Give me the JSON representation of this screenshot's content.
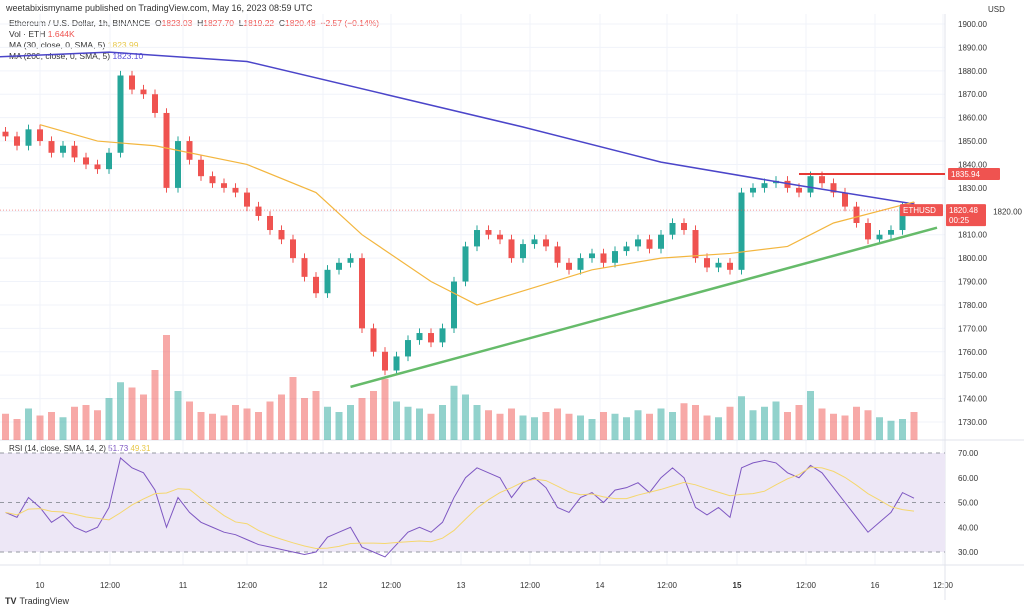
{
  "header": {
    "published": "weetabixismyname published on TradingView.com, May 16, 2023 08:59 UTC"
  },
  "legend": {
    "symbol": "Ethereum / U.S. Dollar, 1h, BINANCE",
    "o_label": "O",
    "o": "1823.03",
    "h_label": "H",
    "h": "1827.70",
    "l_label": "L",
    "l": "1819.22",
    "c_label": "C",
    "c": "1820.48",
    "change": "−2.57 (−0.14%)",
    "vol_label": "Vol · ETH",
    "vol": "1.644K",
    "ma30_label": "MA (30, close, 0, SMA, 5)",
    "ma30": "1823.99",
    "ma200_label": "MA (200, close, 0, SMA, 5)",
    "ma200": "1823.10"
  },
  "rsi_legend": {
    "label": "RSI (14, close, SMA, 14, 2)",
    "rsi": "51.73",
    "rsi_ma": "49.31"
  },
  "price_axis": {
    "currency": "USD",
    "ticks": [
      1900,
      1890,
      1880,
      1870,
      1860,
      1850,
      1840,
      1830,
      1820,
      1810,
      1800,
      1790,
      1780,
      1770,
      1760,
      1750,
      1740,
      1730
    ],
    "symbol_tag": "ETHUSD",
    "last_price": "1820.48",
    "countdown": "00:25",
    "level_tag": "1835.94"
  },
  "rsi_axis": {
    "ticks": [
      70,
      60,
      50,
      40,
      30
    ]
  },
  "time_axis": [
    "10",
    "12:00",
    "11",
    "12:00",
    "12",
    "12:00",
    "13",
    "12:00",
    "14",
    "12:00",
    "15",
    "12:00",
    "16",
    "12:00"
  ],
  "brand": "TradingView",
  "colors": {
    "up": "#26a69a",
    "down": "#ef5350",
    "ma30": "#f3b63f",
    "ma200": "#4b45c9",
    "trendline": "#66bb6a",
    "level": "#e53935",
    "rsi": "#7e57c2",
    "rsi_ma": "#f5d76e",
    "rsi_band": "#ede7f6"
  },
  "chart_data": {
    "type": "candlestick",
    "candles": {
      "start": "2023-05-09 18:00",
      "interval": "2h",
      "close": [
        1852,
        1848,
        1855,
        1850,
        1845,
        1848,
        1843,
        1840,
        1838,
        1845,
        1878,
        1872,
        1870,
        1862,
        1830,
        1850,
        1842,
        1835,
        1832,
        1830,
        1828,
        1822,
        1818,
        1812,
        1808,
        1800,
        1792,
        1785,
        1795,
        1798,
        1800,
        1770,
        1760,
        1752,
        1758,
        1765,
        1768,
        1764,
        1770,
        1790,
        1805,
        1812,
        1810,
        1808,
        1800,
        1806,
        1808,
        1805,
        1798,
        1795,
        1800,
        1802,
        1798,
        1803,
        1805,
        1808,
        1804,
        1810,
        1815,
        1812,
        1800,
        1796,
        1798,
        1795,
        1828,
        1830,
        1832,
        1833,
        1830,
        1828,
        1835,
        1832,
        1828,
        1822,
        1815,
        1808,
        1810,
        1812,
        1822,
        1820.48
      ],
      "volume_k": [
        1.5,
        1.2,
        1.8,
        1.4,
        1.6,
        1.3,
        1.9,
        2.0,
        1.7,
        2.4,
        3.3,
        3.0,
        2.6,
        4.0,
        6.0,
        2.8,
        2.2,
        1.6,
        1.5,
        1.4,
        2.0,
        1.8,
        1.6,
        2.2,
        2.6,
        3.6,
        2.4,
        2.8,
        1.9,
        1.6,
        2.0,
        2.4,
        2.8,
        3.5,
        2.2,
        1.9,
        1.8,
        1.5,
        2.0,
        3.1,
        2.6,
        2.0,
        1.7,
        1.5,
        1.8,
        1.4,
        1.3,
        1.6,
        1.8,
        1.5,
        1.4,
        1.2,
        1.6,
        1.5,
        1.3,
        1.7,
        1.5,
        1.8,
        1.6,
        2.1,
        2.0,
        1.4,
        1.3,
        1.9,
        2.5,
        1.7,
        1.9,
        2.2,
        1.6,
        2.0,
        2.8,
        1.8,
        1.5,
        1.4,
        1.9,
        1.7,
        1.3,
        1.1,
        1.2,
        1.6
      ]
    },
    "rsi": [
      46,
      44,
      52,
      48,
      42,
      45,
      40,
      38,
      40,
      48,
      68,
      64,
      62,
      55,
      40,
      52,
      46,
      42,
      40,
      38,
      37,
      35,
      33,
      32,
      31,
      30,
      29,
      30,
      36,
      38,
      40,
      32,
      30,
      28,
      33,
      38,
      40,
      38,
      42,
      52,
      60,
      64,
      62,
      60,
      52,
      58,
      60,
      56,
      48,
      46,
      52,
      54,
      50,
      55,
      56,
      58,
      54,
      60,
      64,
      60,
      48,
      45,
      48,
      44,
      64,
      66,
      67,
      66,
      62,
      60,
      65,
      62,
      56,
      50,
      44,
      38,
      42,
      46,
      54,
      51.73
    ],
    "ma200": [
      [
        "2023-05-09 17:00",
        1886
      ],
      [
        "2023-05-10 12:00",
        1888
      ],
      [
        "2023-05-11 12:00",
        1884
      ],
      [
        "2023-05-12 12:00",
        1870
      ],
      [
        "2023-05-13 12:00",
        1856
      ],
      [
        "2023-05-14 12:00",
        1841
      ],
      [
        "2023-05-15 12:00",
        1831
      ],
      [
        "2023-05-16 08:00",
        1823.1
      ]
    ],
    "ma30": [
      [
        "2023-05-10 00:00",
        1857
      ],
      [
        "2023-05-10 10:00",
        1850
      ],
      [
        "2023-05-10 20:00",
        1848
      ],
      [
        "2023-05-11 12:00",
        1840
      ],
      [
        "2023-05-12 00:00",
        1828
      ],
      [
        "2023-05-12 08:00",
        1810
      ],
      [
        "2023-05-12 20:00",
        1790
      ],
      [
        "2023-05-13 04:00",
        1780
      ],
      [
        "2023-05-13 12:00",
        1786
      ],
      [
        "2023-05-14 00:00",
        1795
      ],
      [
        "2023-05-14 12:00",
        1800
      ],
      [
        "2023-05-15 00:00",
        1802
      ],
      [
        "2023-05-15 10:00",
        1805
      ],
      [
        "2023-05-15 18:00",
        1815
      ],
      [
        "2023-05-16 08:00",
        1823.99
      ]
    ],
    "trendline": [
      [
        "2023-05-12 06:00",
        1745
      ],
      [
        "2023-05-16 12:00",
        1813
      ]
    ],
    "resistance": {
      "value": 1835.94,
      "from": "2023-05-15 12:00"
    },
    "ylim": [
      1725,
      1905
    ],
    "rsi_ylim": [
      25,
      72
    ],
    "grid": true
  }
}
